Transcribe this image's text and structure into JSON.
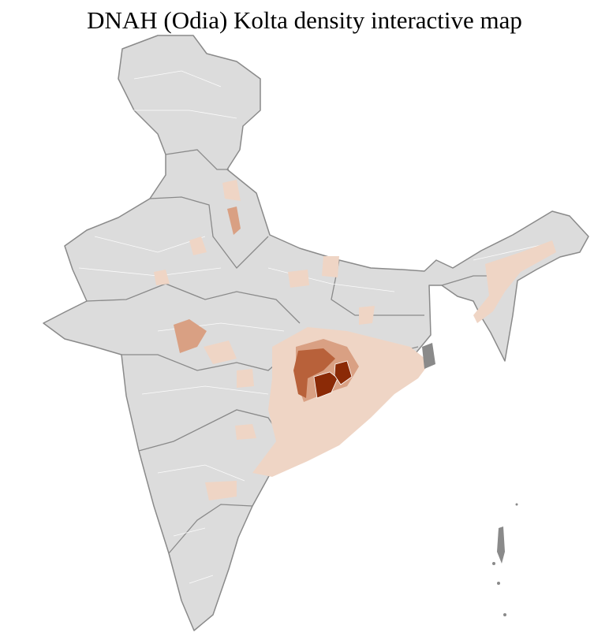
{
  "title": "DNAH (Odia) Kolta density interactive map",
  "colors": {
    "background_region": "#dcdcdc",
    "state_border": "#8a8a8a",
    "district_border": "#ffffff",
    "density_low": "#efd5c5",
    "density_mid": "#d9a083",
    "density_high": "#b8613a",
    "density_max": "#8b2a06"
  }
}
